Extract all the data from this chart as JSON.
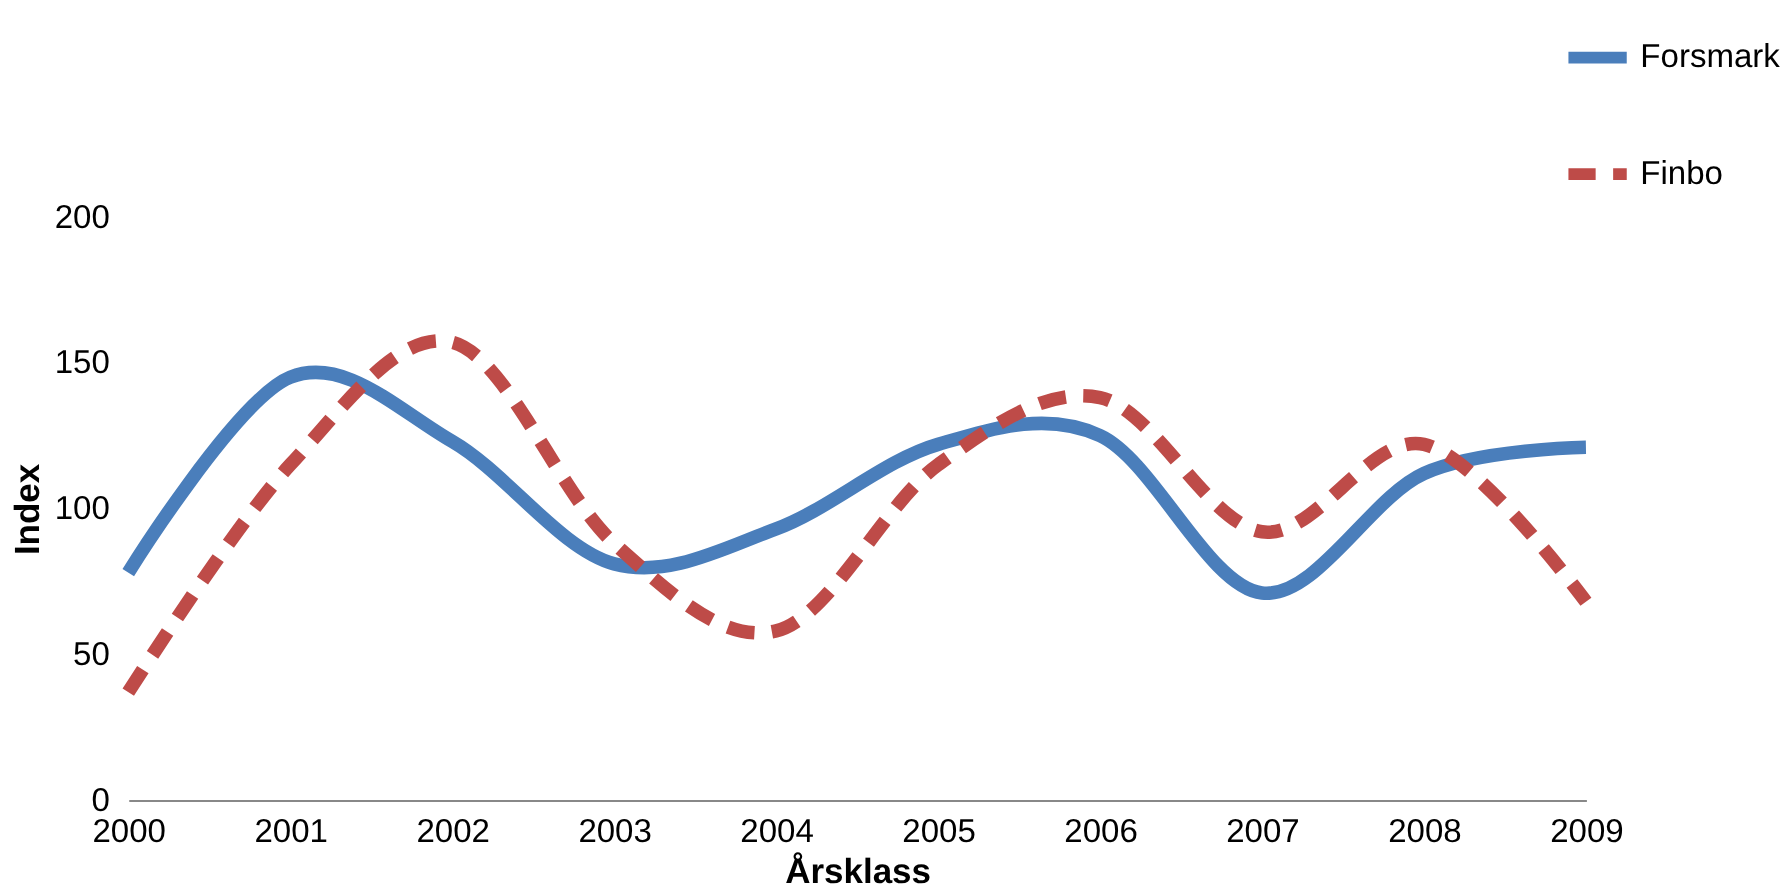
{
  "chart_data": {
    "type": "line",
    "xlabel": "Årsklass",
    "ylabel": "Index",
    "x": [
      2000,
      2001,
      2002,
      2003,
      2004,
      2005,
      2006,
      2007,
      2008,
      2009
    ],
    "xlim": [
      2000,
      2009
    ],
    "xticks": [
      2000,
      2001,
      2002,
      2003,
      2004,
      2005,
      2006,
      2007,
      2008,
      2009
    ],
    "ylim": [
      0,
      200
    ],
    "yticks": [
      0,
      50,
      100,
      150,
      200
    ],
    "grid": false,
    "legend": "top right",
    "marker": "none",
    "series": [
      {
        "name": "Forsmark",
        "color": "#4a7ebb",
        "line_style": "solid",
        "values": [
          78,
          145,
          123,
          81,
          93,
          122,
          125,
          71,
          112,
          121
        ]
      },
      {
        "name": "Finbo",
        "color": "#be4b48",
        "line_style": "dashed",
        "values": [
          37,
          115,
          157,
          88,
          58,
          115,
          138,
          92,
          122,
          68
        ]
      }
    ]
  }
}
